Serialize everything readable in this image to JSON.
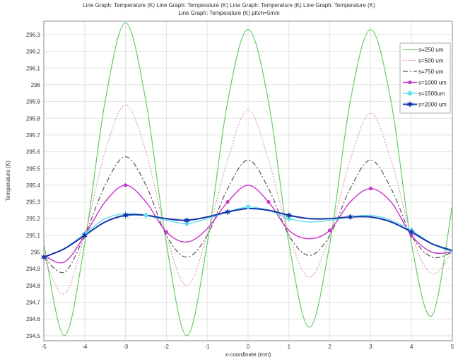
{
  "chart_data": {
    "type": "line",
    "title_line1": "Line Graph: Temperature (K) Line Graph: Temperature (K) Line Graph: Temperature (K) Line Graph: Temperature (K)",
    "title_line2": "Line Graph: Temperature (K) pitch=5mm",
    "xlabel": "x-coordinate (mm)",
    "ylabel": "Temperature (K)",
    "xlim": [
      -5,
      5
    ],
    "ylim": [
      294.47,
      296.38
    ],
    "xticks": [
      -5,
      -4,
      -3,
      -2,
      -1,
      0,
      1,
      2,
      3,
      4,
      5
    ],
    "yticks": [
      294.5,
      294.6,
      294.7,
      294.8,
      294.9,
      295,
      295.1,
      295.2,
      295.3,
      295.4,
      295.5,
      295.6,
      295.7,
      295.8,
      295.9,
      296,
      296.1,
      296.2,
      296.3
    ],
    "grid": true,
    "legend_position": "top-right",
    "series": [
      {
        "name": "s=250 um",
        "color": "#66cc66",
        "style": "solid",
        "marker": "none",
        "x": [
          -5,
          -4.5,
          -4,
          -3.5,
          -3,
          -2.5,
          -2,
          -1.5,
          -1,
          -0.5,
          0,
          0.5,
          1,
          1.5,
          2,
          2.5,
          3,
          3.5,
          4,
          4.5,
          5
        ],
        "y": [
          295.05,
          294.5,
          295.05,
          295.9,
          296.37,
          295.9,
          295.05,
          294.5,
          295.05,
          295.9,
          296.33,
          295.9,
          295.05,
          294.55,
          295.05,
          295.9,
          296.33,
          295.9,
          295.05,
          294.62,
          295.28
        ]
      },
      {
        "name": "s=500 um",
        "color": "#dd99bb",
        "style": "dotted",
        "marker": "none",
        "x": [
          -5,
          -4.5,
          -4,
          -3.5,
          -3,
          -2.5,
          -2,
          -1.5,
          -1,
          -0.5,
          0,
          0.5,
          1,
          1.5,
          2,
          2.5,
          3,
          3.5,
          4,
          4.5,
          5
        ],
        "y": [
          294.97,
          294.75,
          295.1,
          295.6,
          295.88,
          295.6,
          295.1,
          294.8,
          295.1,
          295.55,
          295.85,
          295.55,
          295.1,
          294.85,
          295.1,
          295.55,
          295.83,
          295.55,
          295.1,
          294.87,
          295.0
        ]
      },
      {
        "name": "s=750 um",
        "color": "#555555",
        "style": "dashdot",
        "marker": "none",
        "x": [
          -5,
          -4.5,
          -4,
          -3.5,
          -3,
          -2.5,
          -2,
          -1.5,
          -1,
          -0.5,
          0,
          0.5,
          1,
          1.5,
          2,
          2.5,
          3,
          3.5,
          4,
          4.5,
          5
        ],
        "y": [
          294.97,
          294.88,
          295.1,
          295.4,
          295.57,
          295.4,
          295.1,
          294.97,
          295.1,
          295.38,
          295.55,
          295.38,
          295.1,
          294.98,
          295.1,
          295.38,
          295.55,
          295.38,
          295.1,
          294.97,
          295.0
        ]
      },
      {
        "name": "s=1000 um",
        "color": "#cc33cc",
        "style": "solid",
        "marker": "circle",
        "x": [
          -5,
          -4.5,
          -4,
          -3.5,
          -3,
          -2.5,
          -2,
          -1.5,
          -1,
          -0.5,
          0,
          0.5,
          1,
          1.5,
          2,
          2.5,
          3,
          3.5,
          4,
          4.5,
          5
        ],
        "y": [
          294.98,
          294.94,
          295.1,
          295.3,
          295.4,
          295.3,
          295.12,
          295.06,
          295.14,
          295.3,
          295.4,
          295.3,
          295.13,
          295.08,
          295.13,
          295.3,
          295.38,
          295.3,
          295.1,
          295.0,
          295.0
        ],
        "marker_indices": [
          2,
          4,
          6,
          9,
          11,
          14,
          16,
          18
        ]
      },
      {
        "name": "s=1500um",
        "color": "#66ddee",
        "style": "solid",
        "marker": "diamond",
        "x": [
          -5,
          -4.5,
          -4,
          -3.5,
          -3,
          -2.5,
          -2,
          -1.5,
          -1,
          -0.5,
          0,
          0.5,
          1,
          1.5,
          2,
          2.5,
          3,
          3.5,
          4,
          4.5,
          5
        ],
        "y": [
          294.97,
          295.02,
          295.11,
          295.2,
          295.23,
          295.22,
          295.19,
          295.17,
          295.2,
          295.24,
          295.27,
          295.25,
          295.2,
          295.18,
          295.19,
          295.21,
          295.22,
          295.19,
          295.13,
          295.05,
          295.0
        ],
        "marker_indices": [
          2,
          5,
          7,
          10,
          12,
          15,
          18
        ]
      },
      {
        "name": "s=2000 um",
        "color": "#1133aa",
        "style": "solid",
        "marker": "star",
        "x": [
          -5,
          -4.5,
          -4,
          -3.5,
          -3,
          -2.5,
          -2,
          -1.5,
          -1,
          -0.5,
          0,
          0.5,
          1,
          1.5,
          2,
          2.5,
          3,
          3.5,
          4,
          4.5,
          5
        ],
        "y": [
          294.97,
          295.02,
          295.1,
          295.18,
          295.22,
          295.22,
          295.2,
          295.19,
          295.21,
          295.24,
          295.26,
          295.25,
          295.22,
          295.2,
          295.2,
          295.21,
          295.21,
          295.18,
          295.12,
          295.05,
          295.01
        ],
        "marker_indices": [
          0,
          2,
          4,
          7,
          9,
          12,
          15,
          18
        ]
      }
    ]
  }
}
